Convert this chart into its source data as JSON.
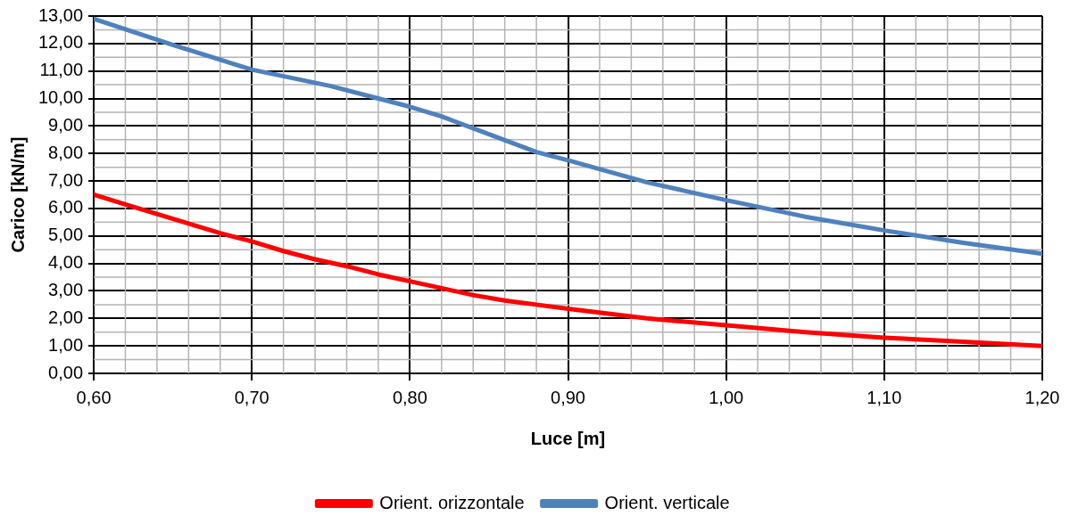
{
  "chart_data": {
    "type": "line",
    "xlabel": "Luce [m]",
    "ylabel": "Carico [kN/m]",
    "xlim": [
      0.6,
      1.2
    ],
    "xticks": [
      {
        "value": 0.6,
        "label": "0,60"
      },
      {
        "value": 0.7,
        "label": "0,70"
      },
      {
        "value": 0.8,
        "label": "0,80"
      },
      {
        "value": 0.9,
        "label": "0,90"
      },
      {
        "value": 1.0,
        "label": "1,00"
      },
      {
        "value": 1.1,
        "label": "1,10"
      },
      {
        "value": 1.2,
        "label": "1,20"
      }
    ],
    "ylim": [
      0,
      13
    ],
    "yticks": [
      {
        "value": 0,
        "label": "0,00"
      },
      {
        "value": 1,
        "label": "1,00"
      },
      {
        "value": 2,
        "label": "2,00"
      },
      {
        "value": 3,
        "label": "3,00"
      },
      {
        "value": 4,
        "label": "4,00"
      },
      {
        "value": 5,
        "label": "5,00"
      },
      {
        "value": 6,
        "label": "6,00"
      },
      {
        "value": 7,
        "label": "7,00"
      },
      {
        "value": 8,
        "label": "8,00"
      },
      {
        "value": 9,
        "label": "9,00"
      },
      {
        "value": 10,
        "label": "10,00"
      },
      {
        "value": 11,
        "label": "11,00"
      },
      {
        "value": 12,
        "label": "12,00"
      },
      {
        "value": 13,
        "label": "13,00"
      }
    ],
    "grid": true,
    "legend": "bottom",
    "marker": "none",
    "line_style": "solid",
    "series": [
      {
        "name": "Orient. orizzontale",
        "color": "#ff0000",
        "x": [
          0.6,
          0.62,
          0.64,
          0.66,
          0.68,
          0.7,
          0.72,
          0.74,
          0.76,
          0.78,
          0.8,
          0.82,
          0.84,
          0.86,
          0.88,
          0.9,
          0.95,
          1.0,
          1.05,
          1.1,
          1.15,
          1.2
        ],
        "values": [
          6.5,
          6.15,
          5.8,
          5.45,
          5.1,
          4.8,
          4.45,
          4.15,
          3.9,
          3.6,
          3.35,
          3.1,
          2.85,
          2.65,
          2.5,
          2.35,
          2.0,
          1.75,
          1.5,
          1.3,
          1.15,
          1.0
        ]
      },
      {
        "name": "Orient. verticale",
        "color": "#4f81bd",
        "x": [
          0.6,
          0.65,
          0.7,
          0.75,
          0.78,
          0.8,
          0.82,
          0.85,
          0.88,
          0.9,
          0.95,
          1.0,
          1.05,
          1.1,
          1.15,
          1.2
        ],
        "values": [
          12.9,
          11.95,
          11.05,
          10.45,
          10.0,
          9.7,
          9.35,
          8.7,
          8.05,
          7.75,
          6.95,
          6.3,
          5.7,
          5.2,
          4.75,
          4.35
        ]
      }
    ]
  }
}
